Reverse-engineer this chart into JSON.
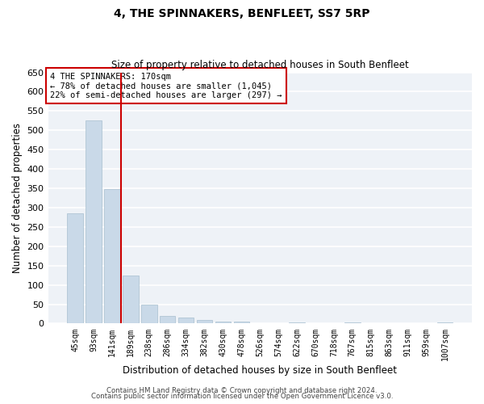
{
  "title": "4, THE SPINNAKERS, BENFLEET, SS7 5RP",
  "subtitle": "Size of property relative to detached houses in South Benfleet",
  "xlabel": "Distribution of detached houses by size in South Benfleet",
  "ylabel": "Number of detached properties",
  "bar_color": "#c9d9e8",
  "bar_edge_color": "#a8bfcf",
  "background_color": "#eef2f7",
  "grid_color": "#ffffff",
  "categories": [
    "45sqm",
    "93sqm",
    "141sqm",
    "189sqm",
    "238sqm",
    "286sqm",
    "334sqm",
    "382sqm",
    "430sqm",
    "478sqm",
    "526sqm",
    "574sqm",
    "622sqm",
    "670sqm",
    "718sqm",
    "767sqm",
    "815sqm",
    "863sqm",
    "911sqm",
    "959sqm",
    "1007sqm"
  ],
  "values": [
    285,
    525,
    348,
    125,
    48,
    20,
    15,
    10,
    6,
    5,
    1,
    0,
    3,
    0,
    0,
    3,
    0,
    0,
    0,
    0,
    3
  ],
  "ylim": [
    0,
    650
  ],
  "yticks": [
    0,
    50,
    100,
    150,
    200,
    250,
    300,
    350,
    400,
    450,
    500,
    550,
    600,
    650
  ],
  "vline_color": "#cc0000",
  "annotation_box_text": "4 THE SPINNAKERS: 170sqm\n← 78% of detached houses are smaller (1,045)\n22% of semi-detached houses are larger (297) →",
  "footer_line1": "Contains HM Land Registry data © Crown copyright and database right 2024.",
  "footer_line2": "Contains public sector information licensed under the Open Government Licence v3.0."
}
